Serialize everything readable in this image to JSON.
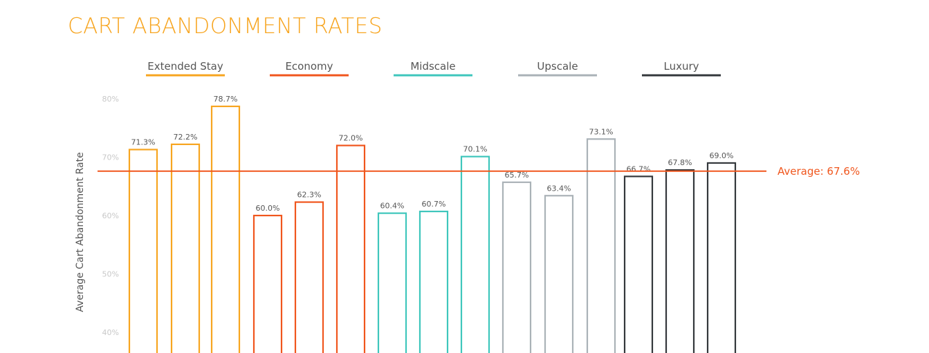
{
  "chart_data": {
    "type": "bar",
    "title": "CART ABANDONMENT RATES",
    "ylabel": "Average Cart Abandonment Rate",
    "xlabel": "",
    "ylim": [
      37,
      80
    ],
    "y_ticks": [
      40,
      50,
      60,
      70,
      80
    ],
    "y_tick_labels": [
      "40%",
      "50%",
      "60%",
      "70%",
      "80%"
    ],
    "grid": false,
    "legend_placement": "top",
    "series": [
      {
        "name": "Extended Stay",
        "color": "#f7a520",
        "values": [
          71.3,
          72.2,
          78.7
        ],
        "labels": [
          "71.3%",
          "72.2%",
          "78.7%"
        ]
      },
      {
        "name": "Economy",
        "color": "#f0561d",
        "values": [
          60.0,
          62.3,
          72.0
        ],
        "labels": [
          "60.0%",
          "62.3%",
          "72.0%"
        ]
      },
      {
        "name": "Midscale",
        "color": "#3ec6bc",
        "values": [
          60.4,
          60.7,
          70.1
        ],
        "labels": [
          "60.4%",
          "60.7%",
          "70.1%"
        ]
      },
      {
        "name": "Upscale",
        "color": "#aab2b7",
        "values": [
          65.7,
          63.4,
          73.1
        ],
        "labels": [
          "65.7%",
          "63.4%",
          "73.1%"
        ]
      },
      {
        "name": "Luxury",
        "color": "#33373b",
        "values": [
          66.7,
          67.8,
          69.0
        ],
        "labels": [
          "66.7%",
          "67.8%",
          "69.0%"
        ]
      }
    ],
    "average": {
      "value": 67.6,
      "label": "Average: 67.6%",
      "color": "#f0561d"
    }
  }
}
